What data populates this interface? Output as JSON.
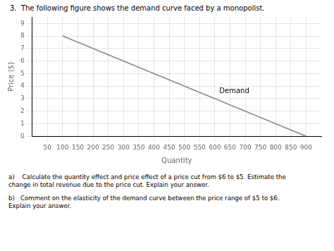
{
  "chart_data": {
    "type": "line",
    "title": "3.  The following figure shows the demand curve faced by a monopolist.",
    "xlabel": "Quantity",
    "ylabel": "Price ($)",
    "x": [
      100,
      900
    ],
    "values": [
      8,
      0
    ],
    "color": "#888888",
    "xlim": [
      0,
      950
    ],
    "ylim": [
      0,
      9.5
    ],
    "xticks": [
      50,
      100,
      150,
      200,
      250,
      300,
      350,
      400,
      450,
      500,
      550,
      600,
      650,
      700,
      750,
      800,
      850,
      900
    ],
    "yticks": [
      0,
      1,
      2,
      3,
      4,
      5,
      6,
      7,
      8,
      9
    ],
    "grid": true,
    "annotations": [
      {
        "text": "Demand",
        "x": 615,
        "y": 3.6
      },
      {
        "text": "a)    Calculate the quantity effect and price effect of a price cut from $6 to $5. Estimate the\nchange in total revenue due to the price cut. Explain your answer."
      },
      {
        "text": "b)   Comment on the elasticity of the demand curve between the price range of $5 to $6.\nExplain your answer."
      }
    ]
  }
}
